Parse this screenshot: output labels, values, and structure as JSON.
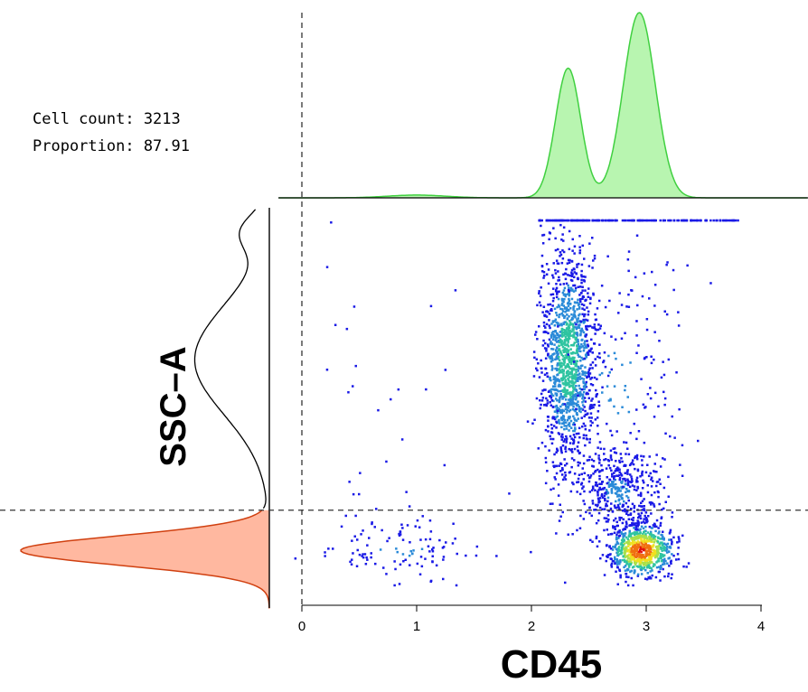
{
  "stats": {
    "cell_count": "Cell count: 3213",
    "proportion": "Proportion: 87.91"
  },
  "chart_data": {
    "type": "scatter",
    "title": "",
    "xlabel": "CD45",
    "ylabel": "SSC–A",
    "xlim": [
      0,
      4.4
    ],
    "ylim": [
      0,
      1
    ],
    "x_ticks": [
      "0",
      "1",
      "2",
      "3",
      "4"
    ],
    "x_tick_values": [
      0,
      1,
      2,
      3,
      4
    ],
    "gate": {
      "x": 0,
      "y": 0.21
    },
    "density_colors": [
      "#1a1ae6",
      "#2a8ad8",
      "#2ec4a0",
      "#a8e04a",
      "#f0e020",
      "#f07010",
      "#e01010"
    ],
    "populations": [
      {
        "name": "",
        "n": 1350,
        "mean_x": 2.32,
        "mean_y": 0.62,
        "sd_x": 0.12,
        "sd_y": 0.15
      },
      {
        "name": "",
        "n": 750,
        "mean_x": 2.96,
        "mean_y": 0.1,
        "sd_x": 0.14,
        "sd_y": 0.035
      },
      {
        "name": "",
        "n": 400,
        "mean_x": 2.75,
        "mean_y": 0.26,
        "sd_x": 0.18,
        "sd_y": 0.06
      },
      {
        "name": "",
        "n": 180,
        "mean_x": 2.75,
        "mean_y": 0.55,
        "sd_x": 0.3,
        "sd_y": 0.2
      },
      {
        "name": "",
        "n": 110,
        "mean_x": 0.85,
        "mean_y": 0.1,
        "sd_x": 0.35,
        "sd_y": 0.04
      }
    ],
    "top_density": {
      "color": "#40d040",
      "fill": "#b8f5b0",
      "peaks": [
        {
          "x": 2.32,
          "height": 0.7,
          "sd": 0.11
        },
        {
          "x": 2.94,
          "height": 1.0,
          "sd": 0.14
        },
        {
          "x": 1.0,
          "height": 0.015,
          "sd": 0.25
        }
      ]
    },
    "side_density": {
      "upper_color": "#000000",
      "lower_color": "#d04010",
      "lower_fill": "#ffb8a0",
      "peaks": [
        {
          "y": 0.1,
          "height": 1.0,
          "sd": 0.04
        },
        {
          "y": 0.62,
          "height": 0.3,
          "sd": 0.15
        },
        {
          "y": 0.97,
          "height": 0.1,
          "sd": 0.05
        }
      ]
    }
  }
}
